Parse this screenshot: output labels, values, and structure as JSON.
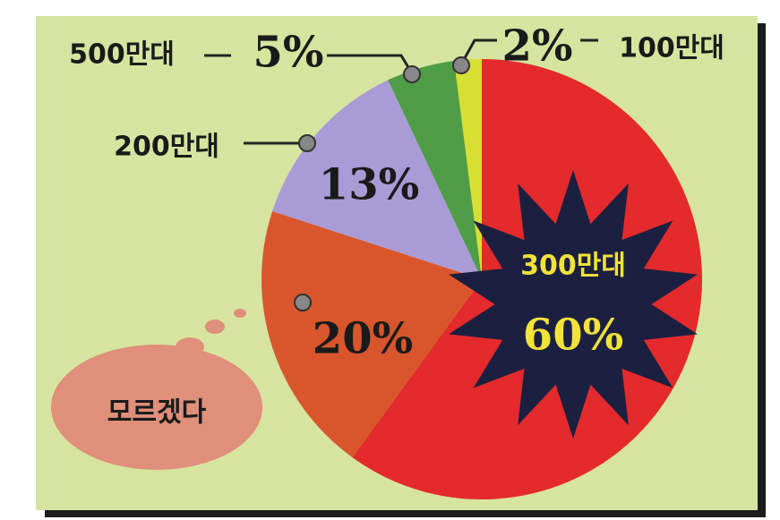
{
  "chart_data": {
    "type": "pie",
    "categories": [
      "300만대",
      "모르겠다",
      "200만대",
      "500만대",
      "100만대"
    ],
    "values": [
      60,
      20,
      13,
      5,
      2
    ],
    "value_labels": [
      "60%",
      "20%",
      "13%",
      "5%",
      "2%"
    ],
    "colors": [
      "#e42a2c",
      "#d9562c",
      "#a99bd6",
      "#4f9c46",
      "#d7df32"
    ]
  }
}
